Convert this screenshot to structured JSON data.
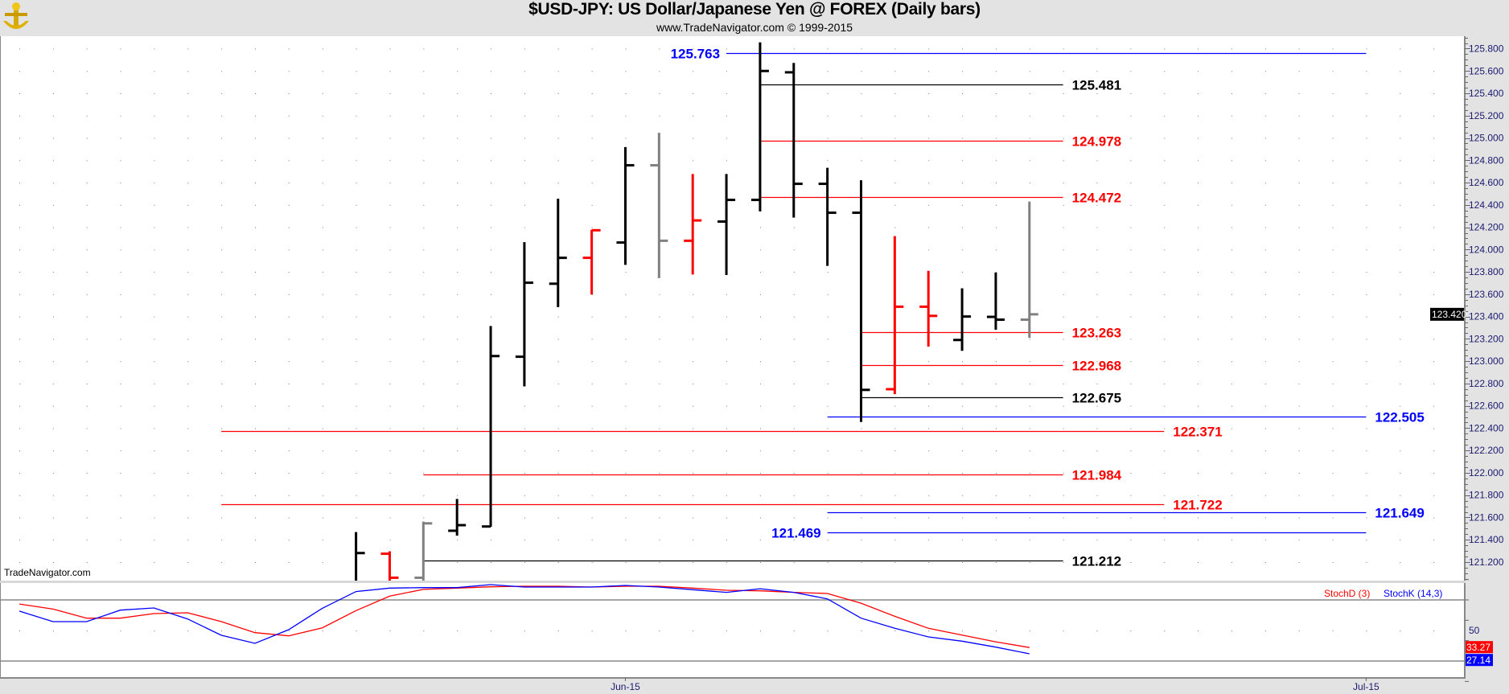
{
  "header": {
    "title": "$USD-JPY:  US Dollar/Japanese Yen @ FOREX  (Daily bars)",
    "subtitle": "www.TradeNavigator.com © 1999-2015",
    "watermark": "TradeNavigator.com",
    "logo": "TradeNavigator"
  },
  "colors": {
    "black": "#000000",
    "red": "#ff0000",
    "gray": "#808080",
    "blue": "#0000ff",
    "axis_text": "#1a1a70"
  },
  "chart_data": [
    {
      "type": "ohlc",
      "title": "$USD-JPY:  US Dollar/Japanese Yen @ FOREX  (Daily bars)",
      "ylim": [
        121.09,
        125.9
      ],
      "y_ticks": [
        "125.800",
        "125.600",
        "125.400",
        "125.200",
        "125.000",
        "124.800",
        "124.600",
        "124.400",
        "124.200",
        "124.000",
        "123.800",
        "123.600",
        "123.400",
        "123.200",
        "123.000",
        "122.800",
        "122.600",
        "122.400",
        "122.200",
        "122.000",
        "121.800",
        "121.600",
        "121.400",
        "121.200"
      ],
      "x_ticks": [
        {
          "label": "Jun-15",
          "bar": 8
        },
        {
          "label": "Jul-15",
          "bar": 30
        }
      ],
      "grid": "dotted",
      "last_price": "123.420",
      "bars": [
        {
          "o": null,
          "h": 121.469,
          "l": 120.95,
          "c": 121.281,
          "color": "black"
        },
        {
          "o": 121.275,
          "h": 121.297,
          "l": 120.95,
          "c": 121.06,
          "color": "red"
        },
        {
          "o": 121.06,
          "h": 121.563,
          "l": 120.95,
          "c": 121.547,
          "color": "gray"
        },
        {
          "o": 121.481,
          "h": 121.766,
          "l": 121.437,
          "c": 121.531,
          "color": "black"
        },
        {
          "o": 121.519,
          "h": 123.315,
          "l": 121.516,
          "c": 123.046,
          "color": "black"
        },
        {
          "o": 123.04,
          "h": 124.066,
          "l": 122.774,
          "c": 123.703,
          "color": "black"
        },
        {
          "o": 123.694,
          "h": 124.455,
          "l": 123.485,
          "c": 123.926,
          "color": "black"
        },
        {
          "o": 123.926,
          "h": 124.176,
          "l": 123.597,
          "c": 124.173,
          "color": "red"
        },
        {
          "o": 124.063,
          "h": 124.918,
          "l": 123.863,
          "c": 124.755,
          "color": "black"
        },
        {
          "o": 124.755,
          "h": 125.046,
          "l": 123.744,
          "c": 124.079,
          "color": "gray"
        },
        {
          "o": 124.079,
          "h": 124.677,
          "l": 123.776,
          "c": 124.261,
          "color": "red"
        },
        {
          "o": 124.251,
          "h": 124.677,
          "l": 123.772,
          "c": 124.445,
          "color": "black"
        },
        {
          "o": 124.445,
          "h": 125.857,
          "l": 124.342,
          "c": 125.6,
          "color": "black"
        },
        {
          "o": 125.588,
          "h": 125.672,
          "l": 124.286,
          "c": 124.589,
          "color": "black"
        },
        {
          "o": 124.589,
          "h": 124.733,
          "l": 123.854,
          "c": 124.33,
          "color": "black"
        },
        {
          "o": 124.33,
          "h": 124.621,
          "l": 122.455,
          "c": 122.743,
          "color": "black"
        },
        {
          "o": 122.749,
          "h": 124.12,
          "l": 122.705,
          "c": 123.488,
          "color": "red"
        },
        {
          "o": 123.488,
          "h": 123.81,
          "l": 123.131,
          "c": 123.406,
          "color": "red"
        },
        {
          "o": 123.19,
          "h": 123.653,
          "l": 123.093,
          "c": 123.4,
          "color": "black"
        },
        {
          "o": 123.397,
          "h": 123.794,
          "l": 123.281,
          "c": 123.372,
          "color": "black"
        },
        {
          "o": 123.372,
          "h": 124.43,
          "l": 123.209,
          "c": 123.42,
          "color": "gray"
        }
      ],
      "levels": [
        {
          "price": 125.763,
          "label": "125.763",
          "color": "blue",
          "from_bar": 11,
          "to_bar": 30,
          "label_side": "left"
        },
        {
          "price": 125.481,
          "label": "125.481",
          "color": "black",
          "from_bar": 12,
          "to_bar": 21,
          "label_side": "right"
        },
        {
          "price": 124.978,
          "label": "124.978",
          "color": "red",
          "from_bar": 12,
          "to_bar": 21,
          "label_side": "right"
        },
        {
          "price": 124.472,
          "label": "124.472",
          "color": "red",
          "from_bar": 12,
          "to_bar": 21,
          "label_side": "right"
        },
        {
          "price": 123.263,
          "label": "123.263",
          "color": "red",
          "from_bar": 15,
          "to_bar": 21,
          "label_side": "right"
        },
        {
          "price": 122.968,
          "label": "122.968",
          "color": "red",
          "from_bar": 15,
          "to_bar": 21,
          "label_side": "right"
        },
        {
          "price": 122.675,
          "label": "122.675",
          "color": "black",
          "from_bar": 15,
          "to_bar": 21,
          "label_side": "right"
        },
        {
          "price": 122.505,
          "label": "122.505",
          "color": "blue",
          "from_bar": 14,
          "to_bar": 30,
          "label_side": "right"
        },
        {
          "price": 122.371,
          "label": "122.371",
          "color": "red",
          "from_bar": -4,
          "to_bar": 24,
          "label_side": "right"
        },
        {
          "price": 121.984,
          "label": "121.984",
          "color": "red",
          "from_bar": 2,
          "to_bar": 21,
          "label_side": "right"
        },
        {
          "price": 121.722,
          "label": "121.722",
          "color": "red",
          "from_bar": -4,
          "to_bar": 24,
          "label_side": "right"
        },
        {
          "price": 121.649,
          "label": "121.649",
          "color": "blue",
          "from_bar": 14,
          "to_bar": 30,
          "label_side": "right"
        },
        {
          "price": 121.469,
          "label": "121.469",
          "color": "blue",
          "from_bar": 14,
          "to_bar": 30,
          "label_side": "left"
        },
        {
          "price": 121.212,
          "label": "121.212",
          "color": "black",
          "from_bar": 2,
          "to_bar": 21,
          "label_side": "right"
        }
      ]
    },
    {
      "type": "line",
      "ylim": [
        0,
        100
      ],
      "reference_lines": [
        80,
        20
      ],
      "y_ticks": [
        "50"
      ],
      "start_bar": -10,
      "series": [
        {
          "name": "StochD (3)",
          "color": "red",
          "last_label": "33.27",
          "values": [
            76,
            71,
            62.1,
            62.1,
            66.6,
            67.4,
            58.7,
            47.9,
            44.7,
            52.6,
            69.5,
            83.7,
            90.3,
            91.6,
            92.9,
            93.4,
            93.4,
            92.6,
            93.4,
            93.4,
            91.6,
            89.5,
            88.9,
            87.4,
            86.3,
            76.8,
            63.9,
            52.1,
            45.5,
            38.9,
            33.27
          ]
        },
        {
          "name": "StochK (14,3)",
          "color": "blue",
          "last_label": "27.14",
          "values": [
            69,
            58.7,
            58.7,
            70,
            72.1,
            61.3,
            45.3,
            37.4,
            50.8,
            71.8,
            88.2,
            91.6,
            92.1,
            92.1,
            95,
            92.6,
            92.6,
            92.6,
            94.2,
            92.6,
            90,
            87.4,
            91,
            87.4,
            81,
            62.1,
            52.1,
            43.7,
            39.5,
            33.7,
            27.14
          ]
        }
      ]
    }
  ]
}
